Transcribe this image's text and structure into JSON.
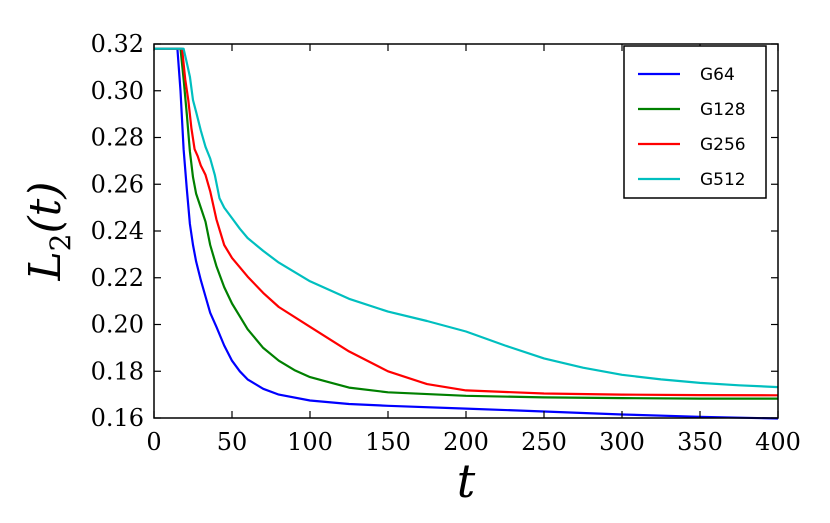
{
  "chart_data": {
    "type": "line",
    "xlabel": "t",
    "ylabel_main": "L",
    "ylabel_sub": "2",
    "ylabel_rest": "(t)",
    "xlim": [
      0,
      400
    ],
    "ylim": [
      0.16,
      0.32
    ],
    "xticks": [
      0,
      50,
      100,
      150,
      200,
      250,
      300,
      350,
      400
    ],
    "yticks": [
      0.16,
      0.18,
      0.2,
      0.22,
      0.24,
      0.26,
      0.28,
      0.3,
      0.32
    ],
    "xtick_labels": [
      "0",
      "50",
      "100",
      "150",
      "200",
      "250",
      "300",
      "350",
      "400"
    ],
    "ytick_labels": [
      "0.16",
      "0.18",
      "0.20",
      "0.22",
      "0.24",
      "0.26",
      "0.28",
      "0.30",
      "0.32"
    ],
    "grid": false,
    "legend_position": "top-right",
    "series": [
      {
        "name": "G64",
        "color": "#0000ff",
        "x": [
          0,
          15,
          17,
          19,
          21,
          23,
          25,
          27,
          30,
          33,
          36,
          40,
          45,
          50,
          55,
          60,
          70,
          80,
          100,
          125,
          150,
          200,
          250,
          300,
          350,
          400
        ],
        "y": [
          0.318,
          0.318,
          0.3,
          0.275,
          0.258,
          0.243,
          0.234,
          0.227,
          0.219,
          0.212,
          0.205,
          0.199,
          0.191,
          0.1845,
          0.18,
          0.1765,
          0.1725,
          0.17,
          0.1675,
          0.166,
          0.1652,
          0.164,
          0.1628,
          0.1615,
          0.1605,
          0.1598
        ]
      },
      {
        "name": "G128",
        "color": "#008000",
        "x": [
          0,
          17,
          19,
          21,
          23,
          25,
          27,
          30,
          33,
          36,
          40,
          45,
          50,
          55,
          60,
          70,
          80,
          90,
          100,
          125,
          150,
          200,
          250,
          300,
          350,
          400
        ],
        "y": [
          0.318,
          0.318,
          0.305,
          0.29,
          0.274,
          0.263,
          0.256,
          0.25,
          0.244,
          0.234,
          0.225,
          0.216,
          0.209,
          0.2035,
          0.198,
          0.19,
          0.1845,
          0.1805,
          0.1775,
          0.173,
          0.171,
          0.1695,
          0.1688,
          0.1685,
          0.1683,
          0.1683
        ]
      },
      {
        "name": "G256",
        "color": "#ff0000",
        "x": [
          0,
          18,
          20,
          22,
          24,
          26,
          28,
          30,
          33,
          36,
          40,
          45,
          50,
          60,
          70,
          80,
          100,
          125,
          150,
          175,
          200,
          250,
          300,
          350,
          400
        ],
        "y": [
          0.318,
          0.318,
          0.305,
          0.296,
          0.284,
          0.275,
          0.272,
          0.268,
          0.264,
          0.257,
          0.245,
          0.234,
          0.2285,
          0.2205,
          0.2135,
          0.2075,
          0.199,
          0.1885,
          0.18,
          0.1745,
          0.1718,
          0.1705,
          0.17,
          0.1698,
          0.1697
        ]
      },
      {
        "name": "G512",
        "color": "#00bfbf",
        "x": [
          0,
          19,
          21,
          23,
          25,
          27,
          30,
          33,
          36,
          39,
          42,
          45,
          50,
          55,
          60,
          70,
          80,
          100,
          125,
          150,
          175,
          200,
          225,
          250,
          275,
          300,
          325,
          350,
          375,
          400
        ],
        "y": [
          0.318,
          0.318,
          0.312,
          0.306,
          0.296,
          0.291,
          0.283,
          0.276,
          0.271,
          0.264,
          0.254,
          0.25,
          0.2455,
          0.241,
          0.237,
          0.2315,
          0.2265,
          0.2185,
          0.211,
          0.2055,
          0.2015,
          0.197,
          0.191,
          0.1855,
          0.1815,
          0.1785,
          0.1765,
          0.175,
          0.174,
          0.1732
        ]
      }
    ]
  }
}
